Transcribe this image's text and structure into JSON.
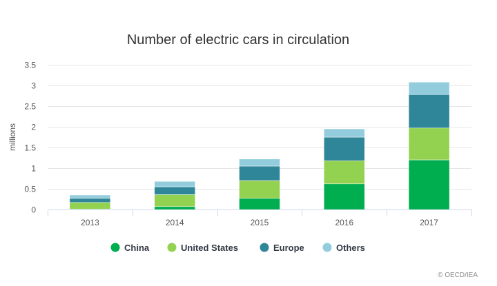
{
  "chart_data": {
    "type": "bar",
    "stacked": true,
    "title": "Number of electric cars in circulation",
    "xlabel": "",
    "ylabel": "millions",
    "ylim": [
      0,
      3.5
    ],
    "yticks": [
      "0",
      "0.5",
      "1",
      "1.5",
      "2",
      "2.5",
      "3",
      "3.5"
    ],
    "ytick_values": [
      0,
      0.5,
      1,
      1.5,
      2,
      2.5,
      3,
      3.5
    ],
    "grid": true,
    "legend_position": "bottom",
    "categories": [
      "2013",
      "2014",
      "2015",
      "2016",
      "2017"
    ],
    "series": [
      {
        "name": "China",
        "color": "#00ad4f",
        "values": [
          0.01,
          0.07,
          0.27,
          0.62,
          1.2
        ]
      },
      {
        "name": "United States",
        "color": "#93d150",
        "values": [
          0.16,
          0.29,
          0.43,
          0.56,
          0.77
        ]
      },
      {
        "name": "Europe",
        "color": "#308699",
        "values": [
          0.1,
          0.19,
          0.35,
          0.57,
          0.81
        ]
      },
      {
        "name": "Others",
        "color": "#93cddd",
        "values": [
          0.08,
          0.13,
          0.17,
          0.2,
          0.3
        ]
      }
    ]
  },
  "credit": "© OECD/IEA"
}
